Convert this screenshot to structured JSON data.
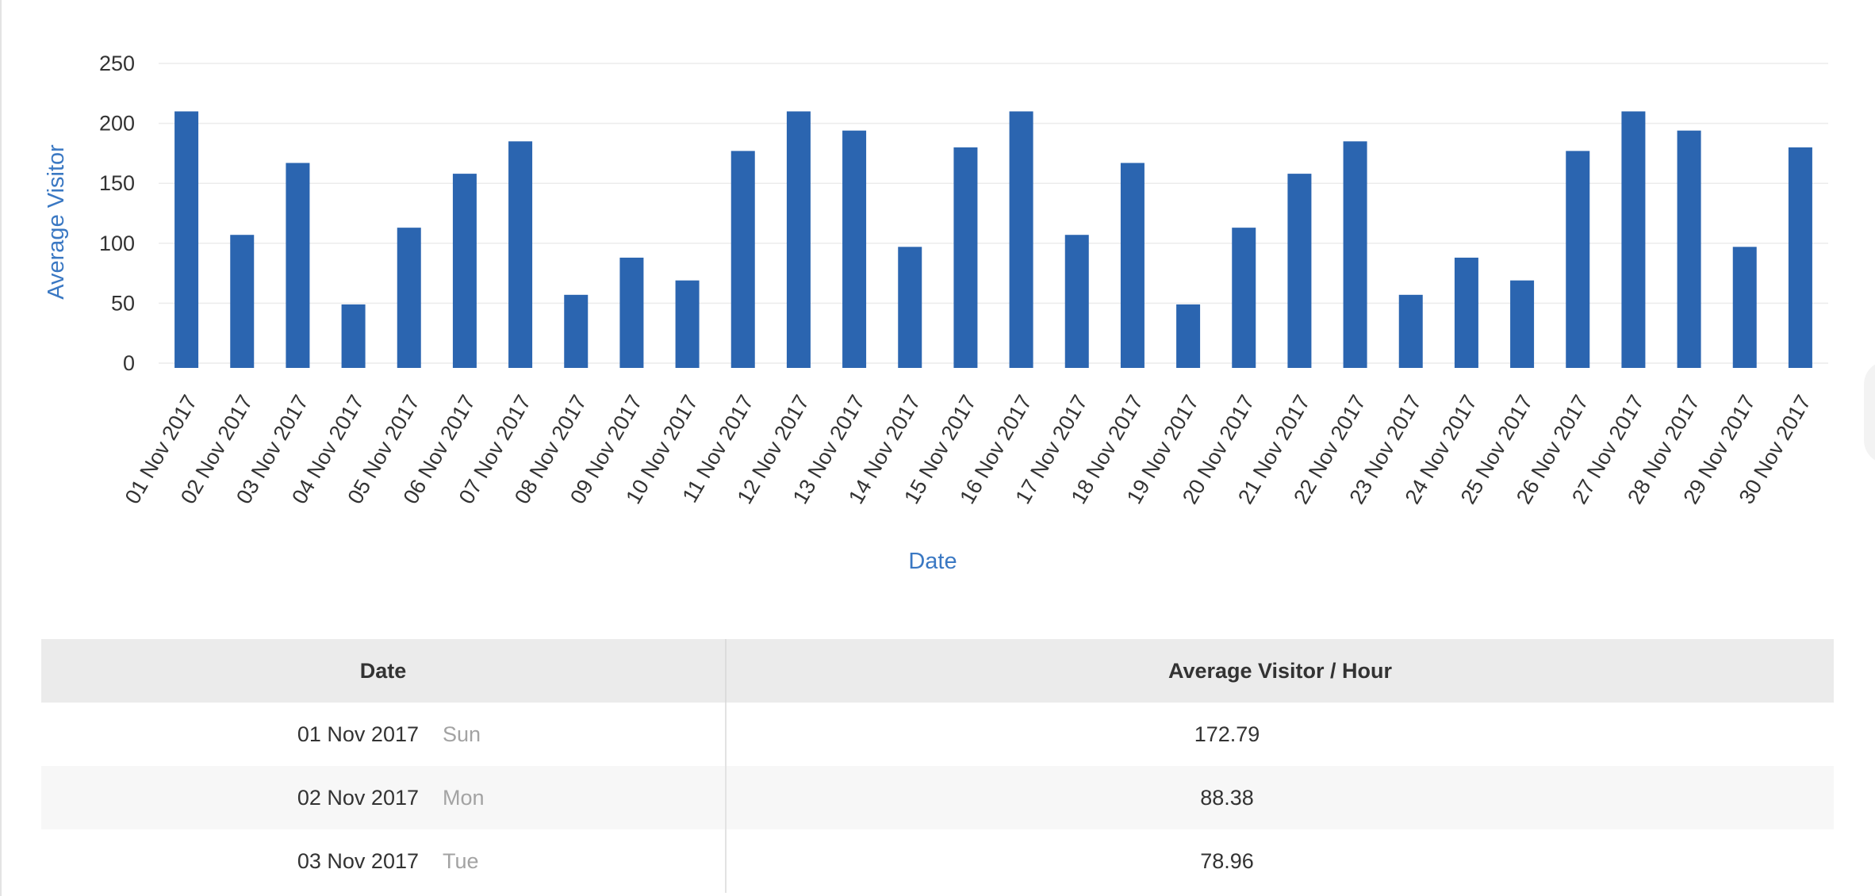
{
  "chart_data": {
    "type": "bar",
    "xlabel": "Date",
    "ylabel": "Average Visitor",
    "ylim": [
      0,
      250
    ],
    "yticks": [
      0,
      50,
      100,
      150,
      200,
      250
    ],
    "grid": true,
    "color": "#2b65b0",
    "categories": [
      "01 Nov 2017",
      "02 Nov 2017",
      "03 Nov 2017",
      "04 Nov 2017",
      "05 Nov 2017",
      "06 Nov 2017",
      "07 Nov 2017",
      "08 Nov 2017",
      "09 Nov 2017",
      "10 Nov 2017",
      "11 Nov 2017",
      "12 Nov 2017",
      "13 Nov 2017",
      "14 Nov 2017",
      "15 Nov 2017",
      "16 Nov 2017",
      "17 Nov 2017",
      "18 Nov 2017",
      "19 Nov 2017",
      "20 Nov 2017",
      "21 Nov 2017",
      "22 Nov 2017",
      "23 Nov 2017",
      "24 Nov 2017",
      "25 Nov 2017",
      "26 Nov 2017",
      "27 Nov 2017",
      "28 Nov 2017",
      "29 Nov 2017",
      "30 Nov 2017"
    ],
    "values": [
      210,
      107,
      167,
      49,
      113,
      158,
      185,
      57,
      88,
      69,
      177,
      210,
      194,
      97,
      180,
      210,
      107,
      167,
      49,
      113,
      158,
      185,
      57,
      88,
      69,
      177,
      210,
      194,
      97,
      180
    ]
  },
  "table": {
    "headers": {
      "date": "Date",
      "value": "Average Visitor /  Hour"
    },
    "rows": [
      {
        "date": "01 Nov 2017",
        "day": "Sun",
        "value": "172.79"
      },
      {
        "date": "02 Nov 2017",
        "day": "Mon",
        "value": "88.38"
      },
      {
        "date": "03 Nov 2017",
        "day": "Tue",
        "value": "78.96"
      }
    ]
  }
}
